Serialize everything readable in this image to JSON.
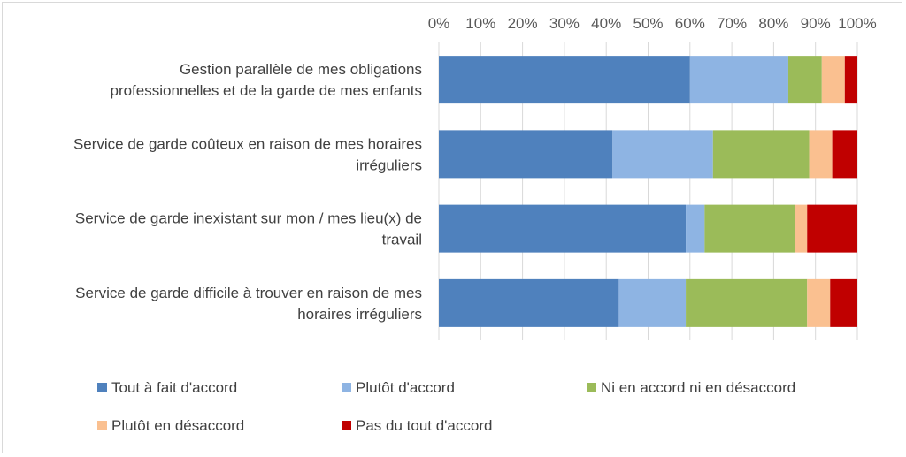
{
  "chart_data": {
    "type": "bar",
    "orientation": "horizontal",
    "stacked": "percent",
    "title": "",
    "xlabel": "",
    "ylabel": "",
    "xlim": [
      0,
      100
    ],
    "x_ticks": [
      "0%",
      "10%",
      "20%",
      "30%",
      "40%",
      "50%",
      "60%",
      "70%",
      "80%",
      "90%",
      "100%"
    ],
    "x_axis_position": "top",
    "grid": true,
    "legend_position": "bottom",
    "categories": [
      [
        "Gestion parallèle de mes obligations",
        "professionnelles et de la garde de mes enfants"
      ],
      [
        "Service de garde coûteux en raison de mes horaires",
        "irréguliers"
      ],
      [
        "Service de garde inexistant sur mon / mes lieu(x) de",
        "travail"
      ],
      [
        "Service de garde difficile à trouver en raison de mes",
        "horaires irréguliers"
      ]
    ],
    "series": [
      {
        "name": "Tout à fait d'accord",
        "color": "#4f81bd",
        "values": [
          60,
          41.5,
          59,
          43
        ]
      },
      {
        "name": "Plutôt d'accord",
        "color": "#8eb4e3",
        "values": [
          23.5,
          24,
          4.5,
          16
        ]
      },
      {
        "name": "Ni en accord ni en désaccord",
        "color": "#9bbb59",
        "values": [
          8,
          23,
          21.5,
          29
        ]
      },
      {
        "name": "Plutôt en désaccord",
        "color": "#fac090",
        "values": [
          5.5,
          5.5,
          3,
          5.5
        ]
      },
      {
        "name": "Pas du tout d'accord",
        "color": "#c00000",
        "values": [
          3,
          6,
          12,
          6.5
        ]
      }
    ]
  }
}
